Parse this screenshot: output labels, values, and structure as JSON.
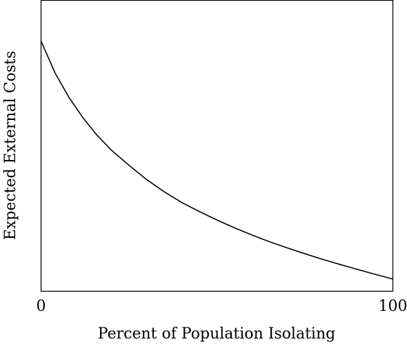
{
  "chart_data": {
    "type": "line",
    "title": "",
    "xlabel": "Percent of Population Isolating",
    "ylabel": "Expected External Costs",
    "xlim": [
      0,
      100
    ],
    "ylim": [
      0,
      1
    ],
    "x_ticks": [
      {
        "value": 0,
        "label": "0"
      },
      {
        "value": 100,
        "label": "100"
      }
    ],
    "grid": false,
    "legend": "none",
    "series": [
      {
        "color": "#000000",
        "x": [
          0,
          4,
          8,
          12,
          16,
          20,
          25,
          30,
          35,
          40,
          45,
          50,
          55,
          60,
          65,
          70,
          75,
          80,
          85,
          90,
          95,
          100
        ],
        "y": [
          0.86,
          0.75,
          0.665,
          0.595,
          0.535,
          0.485,
          0.433,
          0.384,
          0.342,
          0.305,
          0.274,
          0.245,
          0.218,
          0.193,
          0.17,
          0.149,
          0.129,
          0.11,
          0.092,
          0.075,
          0.058,
          0.042
        ]
      }
    ]
  }
}
